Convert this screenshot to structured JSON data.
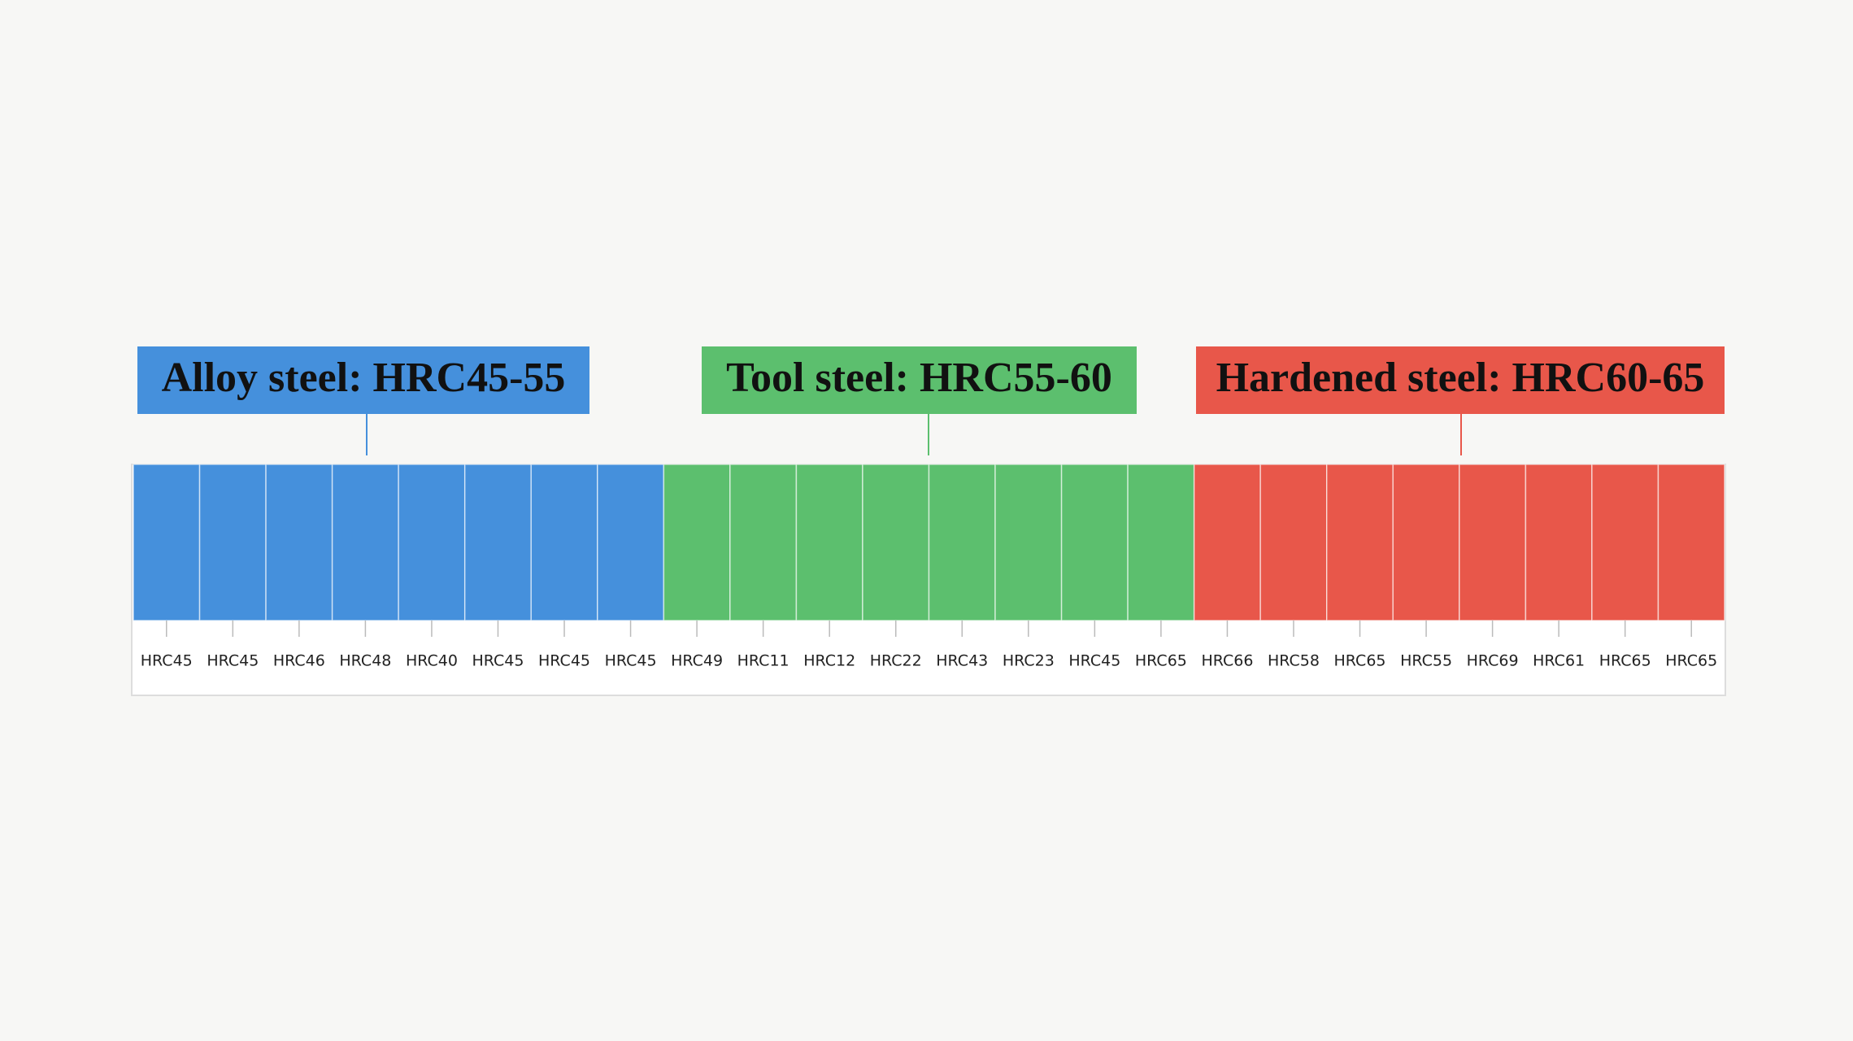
{
  "groups": [
    {
      "title": "Alloy steel: HRC45-55",
      "cells": [
        "HRC45",
        "HRC45",
        "HRC46",
        "HRC48",
        "HRC40",
        "HRC45",
        "HRC45",
        "HRC45"
      ]
    },
    {
      "title": "Tool steel: HRC55-60",
      "cells": [
        "HRC49",
        "HRC11",
        "HRC12",
        "HRC22",
        "HRC43",
        "HRC23",
        "HRC45",
        "HRC65"
      ]
    },
    {
      "title": "Hardened steel: HRC60-65",
      "cells": [
        "HRC66",
        "HRC58",
        "HRC65",
        "HRC55",
        "HRC69",
        "HRC61",
        "HRC65",
        "HRC65"
      ]
    }
  ]
}
